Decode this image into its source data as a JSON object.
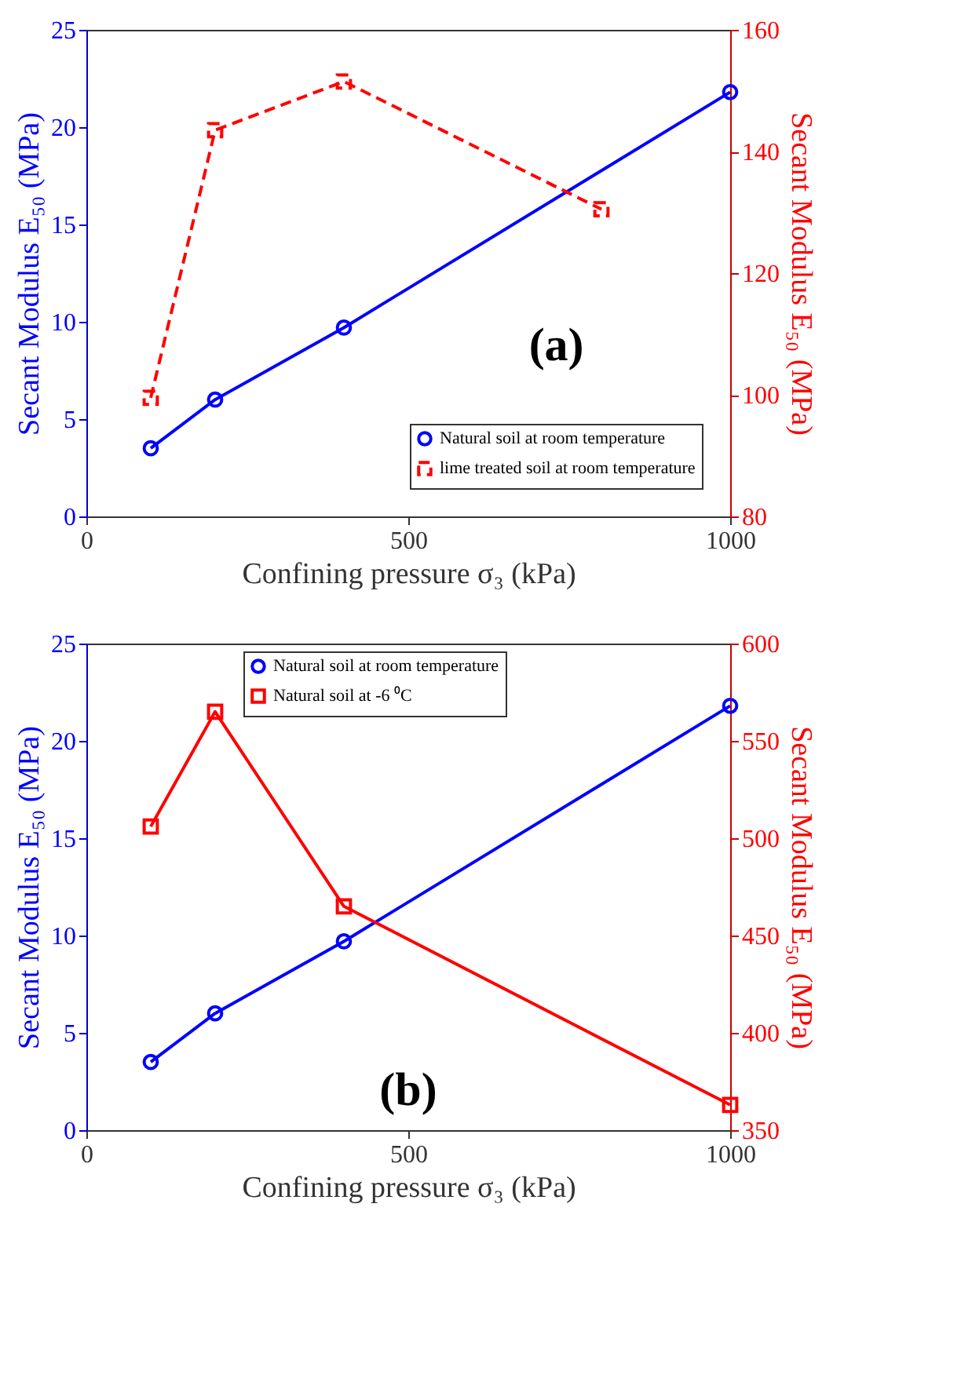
{
  "chart_data": [
    {
      "type": "line",
      "xlabel": "Confining pressure σ₃ (kPa)",
      "ylabel": "Secant Modulus E₅₀ (MPa)",
      "y2label": "Secant Modulus E₅₀ (MPa)",
      "xlim": [
        0,
        1000
      ],
      "xticks": [
        0,
        500,
        1000
      ],
      "ylim": [
        0,
        25
      ],
      "yticks": [
        0,
        5,
        10,
        15,
        20,
        25
      ],
      "y2lim": [
        80,
        160
      ],
      "y2ticks": [
        80,
        100,
        120,
        140,
        160
      ],
      "grid": false,
      "legend": "bottom right",
      "annotations": [
        "(a)"
      ],
      "series": [
        {
          "name": "Natural soil at room temperature",
          "color": "#0000ff",
          "x": [
            100,
            200,
            400,
            1000
          ],
          "values": [
            3.5,
            6.0,
            9.7,
            21.8
          ],
          "marker": "circle",
          "line_style": "solid"
        },
        {
          "name": "lime treated soil at room temperature",
          "color": "#ff0000",
          "axis": "y2",
          "x": [
            100,
            200,
            400,
            800
          ],
          "values": [
            99.5,
            143.5,
            151.5,
            130.5
          ],
          "marker": "square",
          "line_style": "dashed"
        }
      ]
    },
    {
      "type": "line",
      "xlabel": "Confining pressure σ₃ (kPa)",
      "ylabel": "Secant Modulus E₅₀ (MPa)",
      "y2label": "Secant Modulus E₅₀ (MPa)",
      "xlim": [
        0,
        1000
      ],
      "xticks": [
        0,
        500,
        1000
      ],
      "ylim": [
        0,
        25
      ],
      "yticks": [
        0,
        5,
        10,
        15,
        20,
        25
      ],
      "y2lim": [
        350,
        600
      ],
      "y2ticks": [
        350,
        400,
        450,
        500,
        550,
        600
      ],
      "grid": false,
      "legend": "top",
      "annotations": [
        "(b)"
      ],
      "series": [
        {
          "name": "Natural soil at room temperature",
          "color": "#0000ff",
          "x": [
            100,
            200,
            400,
            1000
          ],
          "values": [
            3.5,
            6.0,
            9.7,
            21.8
          ],
          "marker": "circle",
          "line_style": "solid"
        },
        {
          "name": "Natural soil at -6 ⁰C",
          "color": "#ff0000",
          "axis": "y2",
          "x": [
            100,
            200,
            400,
            1000
          ],
          "values": [
            506,
            565,
            465,
            363
          ],
          "marker": "square",
          "line_style": "solid"
        }
      ]
    }
  ]
}
